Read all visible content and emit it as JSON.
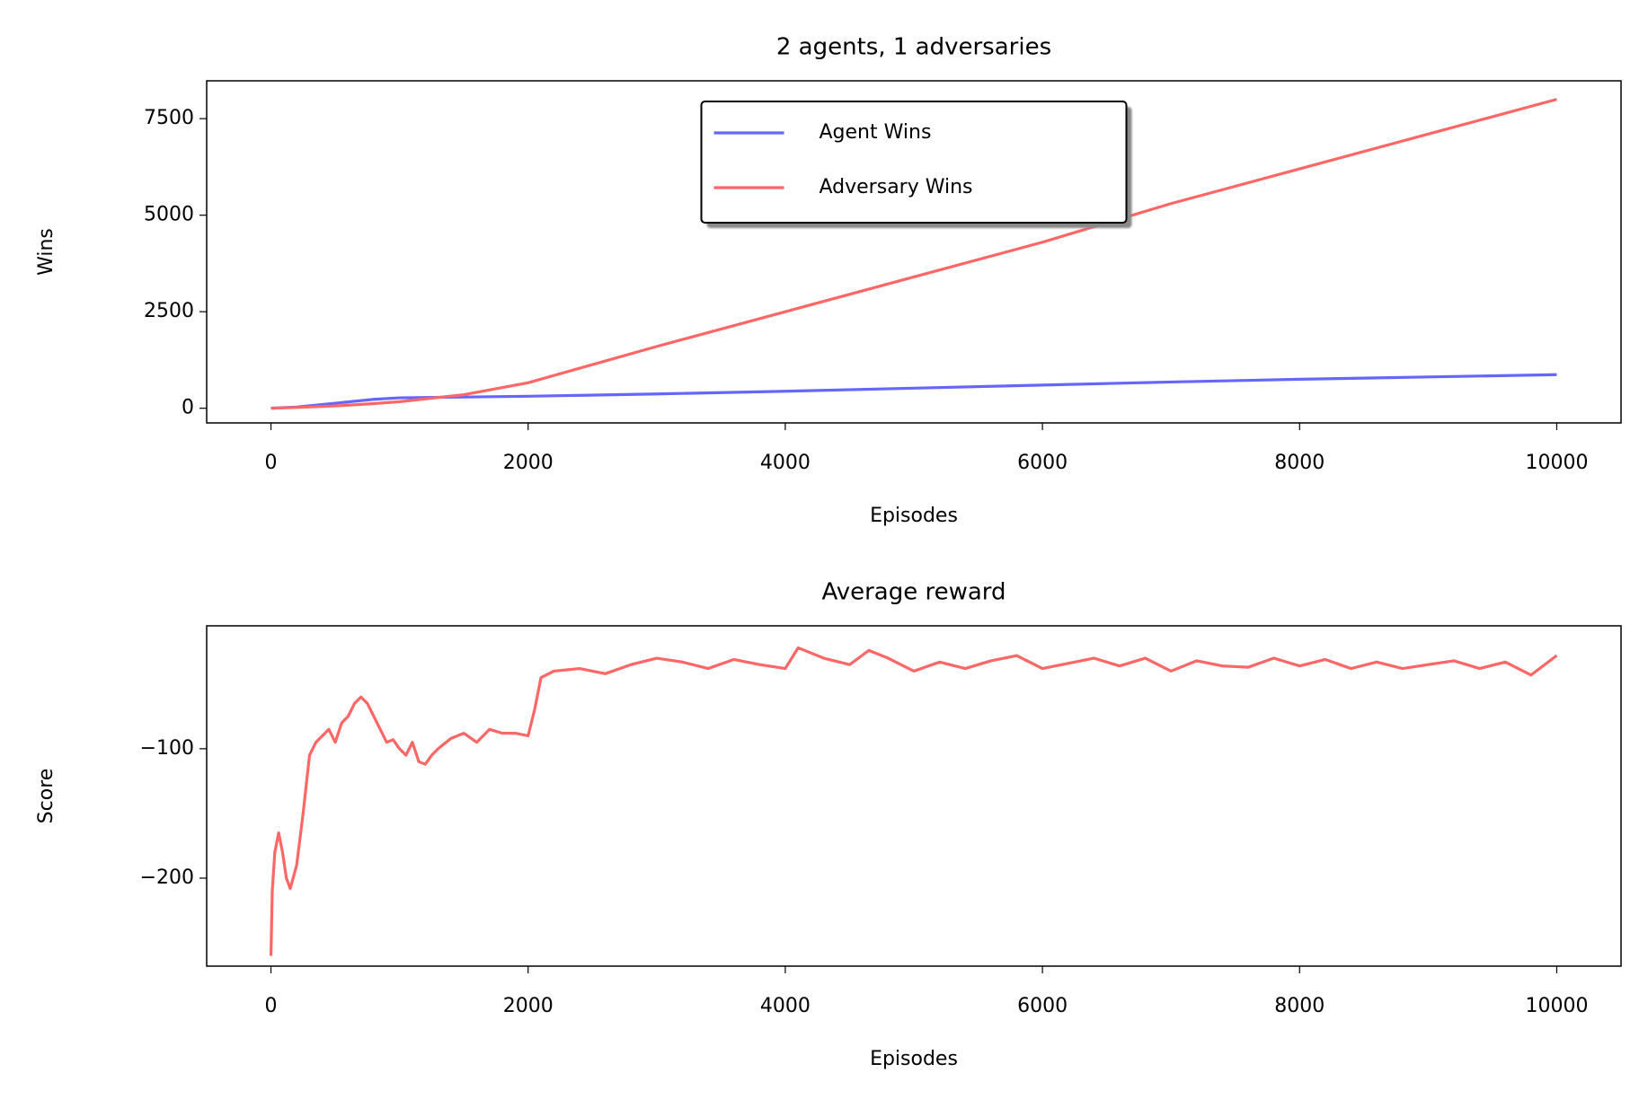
{
  "chart_data": [
    {
      "type": "line",
      "title": "2 agents, 1 adversaries",
      "xlabel": "Episodes",
      "ylabel": "Wins",
      "x": [
        0,
        200,
        500,
        800,
        1000,
        1500,
        2000,
        3000,
        4000,
        5000,
        6000,
        7000,
        8000,
        9000,
        10000
      ],
      "series": [
        {
          "name": "Agent Wins",
          "color": "#6666ff",
          "values": [
            0,
            30,
            130,
            230,
            270,
            290,
            310,
            370,
            440,
            520,
            600,
            680,
            750,
            810,
            870
          ]
        },
        {
          "name": "Adversary Wins",
          "color": "#ff6666",
          "values": [
            0,
            20,
            60,
            120,
            170,
            350,
            660,
            1600,
            2500,
            3400,
            4300,
            5300,
            6200,
            7100,
            8000
          ]
        }
      ],
      "xlim": [
        -500,
        10500
      ],
      "ylim": [
        -380,
        8480
      ],
      "xticks": [
        0,
        2000,
        4000,
        6000,
        8000,
        10000
      ],
      "yticks": [
        0,
        2500,
        5000,
        7500
      ],
      "legend": "upper center"
    },
    {
      "type": "line",
      "title": "Average reward",
      "xlabel": "Episodes",
      "ylabel": "Score",
      "x": [
        0,
        10,
        30,
        60,
        90,
        120,
        150,
        200,
        250,
        300,
        350,
        400,
        450,
        500,
        550,
        600,
        650,
        700,
        750,
        800,
        850,
        900,
        950,
        1000,
        1050,
        1100,
        1150,
        1200,
        1250,
        1300,
        1400,
        1500,
        1600,
        1700,
        1800,
        1900,
        2000,
        2050,
        2100,
        2200,
        2400,
        2600,
        2800,
        3000,
        3200,
        3400,
        3600,
        3800,
        4000,
        4100,
        4300,
        4500,
        4650,
        4800,
        5000,
        5200,
        5400,
        5600,
        5800,
        6000,
        6200,
        6400,
        6600,
        6800,
        7000,
        7200,
        7400,
        7600,
        7800,
        8000,
        8200,
        8400,
        8600,
        8800,
        9000,
        9200,
        9400,
        9600,
        9800,
        10000
      ],
      "series": [
        {
          "name": "Score",
          "color": "#ff6666",
          "values": [
            -260,
            -210,
            -180,
            -165,
            -180,
            -200,
            -208,
            -190,
            -150,
            -105,
            -95,
            -90,
            -85,
            -95,
            -80,
            -75,
            -65,
            -60,
            -65,
            -75,
            -85,
            -95,
            -93,
            -100,
            -105,
            -95,
            -110,
            -112,
            -105,
            -100,
            -92,
            -88,
            -95,
            -85,
            -88,
            -88,
            -90,
            -70,
            -45,
            -40,
            -38,
            -42,
            -35,
            -30,
            -33,
            -38,
            -31,
            -35,
            -38,
            -22,
            -30,
            -35,
            -24,
            -30,
            -40,
            -33,
            -38,
            -32,
            -28,
            -38,
            -34,
            -30,
            -36,
            -30,
            -40,
            -32,
            -36,
            -37,
            -30,
            -36,
            -31,
            -38,
            -33,
            -38,
            -35,
            -32,
            -38,
            -33,
            -43,
            -28
          ]
        }
      ],
      "xlim": [
        -500,
        10500
      ],
      "ylim": [
        -268,
        -5
      ],
      "xticks": [
        0,
        2000,
        4000,
        6000,
        8000,
        10000
      ],
      "yticks": [
        {
          "value": -100,
          "label": "−100"
        },
        {
          "value": -200,
          "label": "−200"
        }
      ]
    }
  ]
}
